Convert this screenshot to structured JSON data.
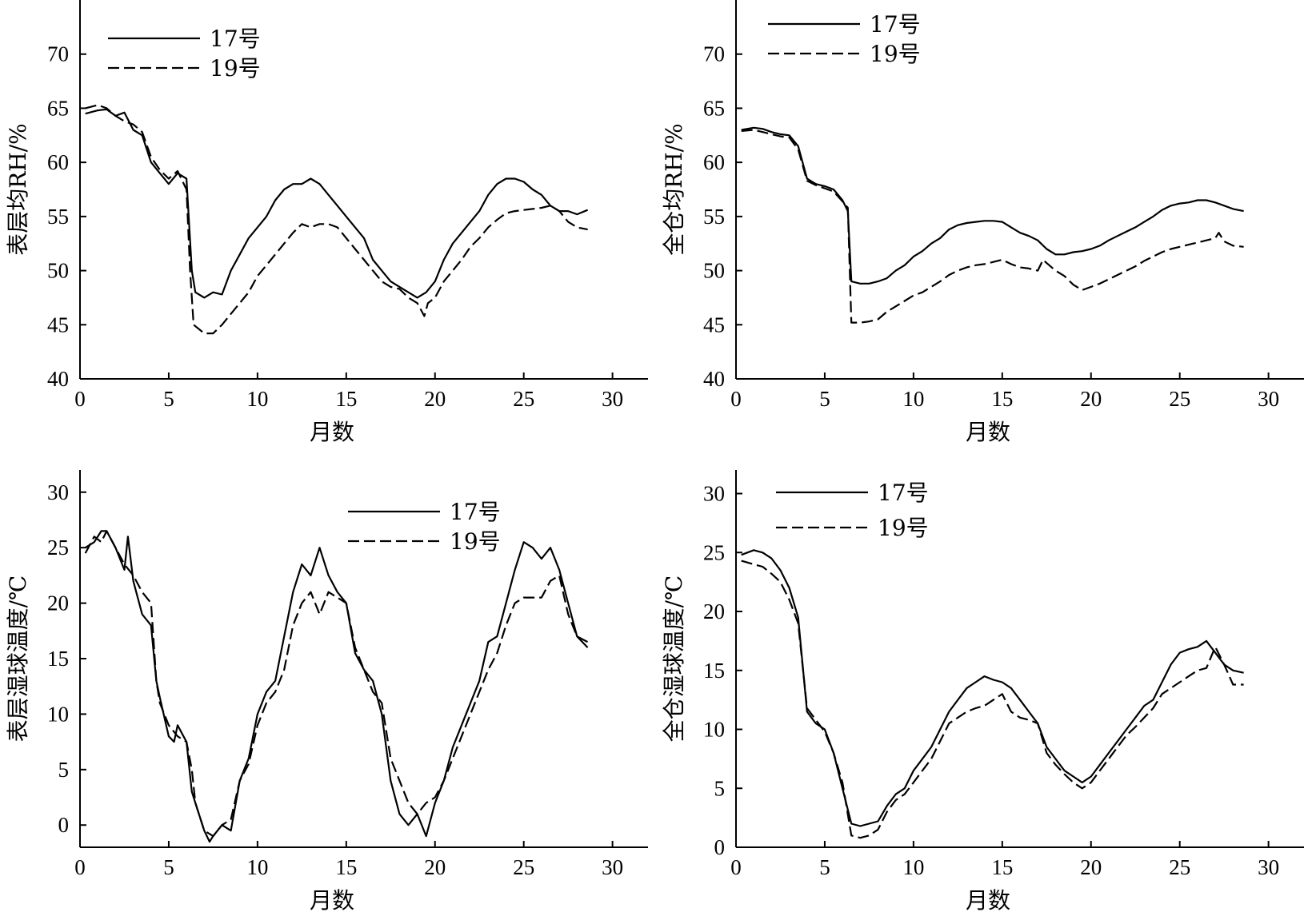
{
  "chart_data": [
    {
      "type": "line",
      "ylabel": "表层均RH/%",
      "xlabel": "月数",
      "xlim": [
        0,
        32
      ],
      "ylim": [
        40,
        75
      ],
      "xticks": [
        0,
        5,
        10,
        15,
        20,
        25,
        30
      ],
      "yticks": [
        40,
        45,
        50,
        55,
        60,
        65,
        70
      ],
      "legend": "top-left",
      "series": [
        {
          "name": "17号",
          "style": "solid",
          "x": [
            0.3,
            1,
            1.5,
            2,
            2.5,
            3,
            3.5,
            4,
            4.5,
            5,
            5.5,
            6,
            6.3,
            6.5,
            7,
            7.5,
            8,
            8.5,
            9,
            9.5,
            10,
            10.5,
            11,
            11.5,
            12,
            12.5,
            13,
            13.5,
            14,
            14.5,
            15,
            15.5,
            16,
            16.5,
            17,
            17.5,
            18,
            18.5,
            19,
            19.5,
            20,
            20.5,
            21,
            21.5,
            22,
            22.5,
            23,
            23.5,
            24,
            24.5,
            25,
            25.5,
            26,
            26.5,
            27,
            27.5,
            28,
            28.6
          ],
          "y": [
            64.5,
            64.8,
            64.9,
            64.3,
            64.6,
            63,
            62.5,
            60,
            59,
            58,
            59,
            58.5,
            50,
            48,
            47.5,
            48,
            47.8,
            50,
            51.5,
            53,
            54,
            55,
            56.5,
            57.5,
            58,
            58,
            58.5,
            58,
            57,
            56,
            55,
            54,
            53,
            51,
            50,
            49,
            48.5,
            48,
            47.5,
            48,
            49,
            51,
            52.5,
            53.5,
            54.5,
            55.5,
            57,
            58,
            58.5,
            58.5,
            58.2,
            57.5,
            57,
            56,
            55.5,
            55.5,
            55.2,
            55.6
          ]
        },
        {
          "name": "19号",
          "style": "dashed",
          "x": [
            0.3,
            1,
            1.5,
            2,
            2.5,
            3,
            3.5,
            4,
            4.5,
            5,
            5.5,
            6,
            6.2,
            6.4,
            7,
            7.5,
            8,
            8.5,
            9,
            9.5,
            10,
            10.5,
            11,
            11.5,
            12,
            12.5,
            13,
            13.5,
            14,
            14.5,
            15,
            15.5,
            16,
            16.5,
            17,
            17.5,
            18,
            18.5,
            19,
            19.4,
            19.6,
            20,
            20.5,
            21,
            21.5,
            22,
            22.5,
            23,
            23.5,
            24,
            24.5,
            25,
            25.5,
            26,
            26.5,
            27,
            27.5,
            28,
            28.6
          ],
          "y": [
            65,
            65.3,
            65,
            64.3,
            63.8,
            63.5,
            62.8,
            60.5,
            59.3,
            58.5,
            59.2,
            57.5,
            50,
            45,
            44.2,
            44.2,
            45,
            46,
            47,
            48,
            49.5,
            50.5,
            51.5,
            52.5,
            53.5,
            54.3,
            54,
            54.3,
            54.3,
            54,
            53,
            52,
            51,
            50,
            49,
            48.5,
            48.3,
            47.5,
            47,
            45.8,
            47,
            47.5,
            49,
            50,
            51,
            52.2,
            53,
            54,
            54.7,
            55.3,
            55.5,
            55.6,
            55.7,
            55.8,
            56,
            55.5,
            54.5,
            54,
            53.8
          ]
        }
      ]
    },
    {
      "type": "line",
      "ylabel": "全仓均RH/%",
      "xlabel": "月数",
      "xlim": [
        0,
        32
      ],
      "ylim": [
        40,
        75
      ],
      "xticks": [
        0,
        5,
        10,
        15,
        20,
        25,
        30
      ],
      "yticks": [
        40,
        45,
        50,
        55,
        60,
        65,
        70
      ],
      "legend": "top-left",
      "series": [
        {
          "name": "17号",
          "style": "solid",
          "x": [
            0.3,
            1,
            1.5,
            2,
            2.5,
            3,
            3.5,
            4,
            4.5,
            5,
            5.5,
            6,
            6.3,
            6.5,
            7,
            7.5,
            8,
            8.5,
            9,
            9.5,
            10,
            10.5,
            11,
            11.5,
            12,
            12.5,
            13,
            13.5,
            14,
            14.5,
            15,
            15.5,
            16,
            16.5,
            17,
            17.5,
            18,
            18.5,
            19,
            19.5,
            20,
            20.5,
            21,
            21.5,
            22,
            22.5,
            23,
            23.5,
            24,
            24.5,
            25,
            25.5,
            26,
            26.5,
            27,
            27.5,
            28,
            28.6
          ],
          "y": [
            63,
            63.2,
            63.1,
            62.8,
            62.6,
            62.5,
            61.5,
            58.5,
            58,
            57.8,
            57.5,
            56.5,
            55.5,
            49,
            48.8,
            48.8,
            49,
            49.3,
            50,
            50.5,
            51.3,
            51.8,
            52.5,
            53,
            53.8,
            54.2,
            54.4,
            54.5,
            54.6,
            54.6,
            54.5,
            54,
            53.5,
            53.2,
            52.8,
            52,
            51.5,
            51.5,
            51.7,
            51.8,
            52,
            52.3,
            52.8,
            53.2,
            53.6,
            54,
            54.5,
            55,
            55.6,
            56,
            56.2,
            56.3,
            56.5,
            56.5,
            56.3,
            56,
            55.7,
            55.5
          ]
        },
        {
          "name": "19号",
          "style": "dashed",
          "x": [
            0.3,
            1,
            1.5,
            2,
            2.5,
            3,
            3.5,
            4,
            4.5,
            5,
            5.5,
            6,
            6.3,
            6.5,
            7,
            7.5,
            8,
            8.5,
            9,
            9.5,
            10,
            10.5,
            11,
            11.5,
            12,
            12.5,
            13,
            13.5,
            14,
            14.5,
            15,
            15.5,
            16,
            16.5,
            17,
            17.3,
            17.5,
            18,
            18.5,
            19,
            19.5,
            20,
            20.5,
            21,
            21.5,
            22,
            22.5,
            23,
            23.5,
            24,
            24.5,
            25,
            25.5,
            26,
            26.5,
            27,
            27.2,
            27.5,
            28,
            28.6
          ],
          "y": [
            62.9,
            63,
            62.8,
            62.6,
            62.4,
            62.3,
            61.2,
            58.3,
            57.9,
            57.6,
            57.3,
            56.4,
            55.8,
            45.2,
            45.2,
            45.3,
            45.5,
            46.2,
            46.7,
            47.2,
            47.7,
            48,
            48.5,
            49,
            49.6,
            50,
            50.3,
            50.5,
            50.6,
            50.8,
            51,
            50.6,
            50.3,
            50.2,
            50,
            51,
            50.7,
            50,
            49.5,
            48.7,
            48.2,
            48.5,
            48.8,
            49.2,
            49.6,
            50,
            50.4,
            50.9,
            51.3,
            51.7,
            52,
            52.2,
            52.4,
            52.6,
            52.8,
            53,
            53.5,
            52.7,
            52.3,
            52.2
          ]
        }
      ]
    },
    {
      "type": "line",
      "ylabel": "表层湿球温度/℃",
      "xlabel": "月数",
      "xlim": [
        0,
        32
      ],
      "ylim": [
        -2,
        32
      ],
      "xticks": [
        0,
        5,
        10,
        15,
        20,
        25,
        30
      ],
      "yticks": [
        0,
        5,
        10,
        15,
        20,
        25,
        30
      ],
      "legend": "top-center",
      "series": [
        {
          "name": "17号",
          "style": "solid",
          "x": [
            0.3,
            0.8,
            1.2,
            1.5,
            2,
            2.5,
            2.7,
            3,
            3.5,
            4,
            4.3,
            4.5,
            5,
            5.3,
            5.5,
            6,
            6.3,
            6.5,
            7,
            7.3,
            7.5,
            8,
            8.5,
            9,
            9.5,
            10,
            10.5,
            11,
            11.5,
            12,
            12.5,
            13,
            13.5,
            14,
            14.5,
            15,
            15.5,
            16,
            16.5,
            17,
            17.5,
            18,
            18.5,
            19,
            19.5,
            20,
            20.5,
            21,
            21.5,
            22,
            22.5,
            23,
            23.5,
            24,
            24.5,
            25,
            25.5,
            26,
            26.5,
            27,
            27.5,
            28,
            28.6
          ],
          "y": [
            25,
            25.5,
            26.5,
            26.5,
            25,
            23,
            26,
            22,
            19,
            18,
            13,
            11.5,
            8,
            7.5,
            9,
            7.5,
            3,
            2,
            -0.5,
            -1.5,
            -1,
            0,
            -0.5,
            4,
            6,
            10,
            12,
            13,
            17,
            21,
            23.5,
            22.5,
            25,
            22.5,
            21,
            20,
            15.5,
            14,
            13,
            10,
            4,
            1,
            0,
            1,
            -1,
            2,
            4,
            7,
            9,
            11,
            13,
            16.5,
            17,
            20,
            23,
            25.5,
            25,
            24,
            25,
            23,
            20,
            17,
            16
          ]
        },
        {
          "name": "19号",
          "style": "dashed",
          "x": [
            0.3,
            0.8,
            1.2,
            1.5,
            2,
            2.5,
            3,
            3.5,
            4,
            4.3,
            4.5,
            5,
            5.5,
            6,
            6.3,
            6.5,
            7,
            7.5,
            8,
            8.5,
            9,
            9.5,
            10,
            10.5,
            11,
            11.5,
            12,
            12.5,
            13,
            13.5,
            14,
            14.5,
            15,
            15.5,
            16,
            16.5,
            17,
            17.5,
            18,
            18.5,
            19,
            19.5,
            20,
            20.5,
            21,
            21.5,
            22,
            22.5,
            23,
            23.5,
            24,
            24.5,
            25,
            25.5,
            26,
            26.5,
            27,
            27.5,
            28,
            28.6
          ],
          "y": [
            24.5,
            26,
            25.5,
            26.5,
            25,
            23.5,
            22.5,
            21,
            20,
            13,
            11,
            9,
            8,
            7.5,
            5,
            2,
            -0.5,
            -1,
            0,
            0.5,
            4,
            5.5,
            9,
            11,
            12,
            14,
            18,
            20,
            21,
            19,
            21,
            20.5,
            20,
            16,
            14,
            12,
            11,
            6,
            4,
            2,
            1,
            2,
            2.5,
            4,
            6,
            8,
            10,
            12,
            14,
            15.5,
            18,
            20,
            20.5,
            20.5,
            20.5,
            22,
            22.5,
            19,
            17,
            16.5
          ]
        }
      ]
    },
    {
      "type": "line",
      "ylabel": "全仓湿球温度/℃",
      "xlabel": "月数",
      "xlim": [
        0,
        32
      ],
      "ylim": [
        0,
        32
      ],
      "xticks": [
        0,
        5,
        10,
        15,
        20,
        25,
        30
      ],
      "yticks": [
        0,
        5,
        10,
        15,
        20,
        25,
        30
      ],
      "legend": "top-left",
      "series": [
        {
          "name": "17号",
          "style": "solid",
          "x": [
            0.3,
            1,
            1.5,
            2,
            2.5,
            3,
            3.5,
            4,
            4.5,
            5,
            5.5,
            6,
            6.5,
            7,
            7.5,
            8,
            8.5,
            9,
            9.5,
            10,
            10.5,
            11,
            11.5,
            12,
            12.5,
            13,
            13.5,
            14,
            14.5,
            15,
            15.5,
            16,
            16.5,
            17,
            17.5,
            18,
            18.5,
            19,
            19.5,
            20,
            20.5,
            21,
            21.5,
            22,
            22.5,
            23,
            23.5,
            24,
            24.5,
            25,
            25.5,
            26,
            26.5,
            27,
            27.5,
            28,
            28.6
          ],
          "y": [
            24.8,
            25.2,
            25,
            24.5,
            23.5,
            22,
            19.5,
            11.5,
            10.5,
            10,
            8,
            5,
            2,
            1.8,
            2,
            2.2,
            3.5,
            4.5,
            5,
            6.5,
            7.5,
            8.5,
            10,
            11.5,
            12.5,
            13.5,
            14,
            14.5,
            14.2,
            14,
            13.5,
            12.5,
            11.5,
            10.5,
            8.5,
            7.5,
            6.5,
            6,
            5.5,
            6,
            7,
            8,
            9,
            10,
            11,
            12,
            12.5,
            14,
            15.5,
            16.5,
            16.8,
            17,
            17.5,
            16.5,
            15.5,
            15,
            14.8
          ]
        },
        {
          "name": "19号",
          "style": "dashed",
          "x": [
            0.3,
            1,
            1.5,
            2,
            2.5,
            3,
            3.5,
            4,
            4.5,
            5,
            5.5,
            6,
            6.5,
            7,
            7.5,
            8,
            8.5,
            9,
            9.5,
            10,
            10.5,
            11,
            11.5,
            12,
            12.5,
            13,
            13.5,
            14,
            14.5,
            15,
            15.5,
            16,
            16.5,
            17,
            17.5,
            18,
            18.5,
            19,
            19.5,
            20,
            20.5,
            21,
            21.5,
            22,
            22.5,
            23,
            23.5,
            24,
            24.5,
            25,
            25.5,
            26,
            26.5,
            27,
            27.5,
            28,
            28.6
          ],
          "y": [
            24.3,
            24,
            23.8,
            23.2,
            22.5,
            21,
            19,
            11.8,
            10.8,
            9.8,
            8,
            5.5,
            1,
            0.8,
            1,
            1.5,
            3,
            4,
            4.5,
            5.5,
            6.5,
            7.5,
            9,
            10.5,
            11,
            11.5,
            11.8,
            12,
            12.5,
            13,
            11.5,
            11,
            10.8,
            10.5,
            8,
            7,
            6.2,
            5.5,
            5,
            5.5,
            6.5,
            7.5,
            8.5,
            9.5,
            10.2,
            11,
            11.8,
            13,
            13.5,
            14,
            14.5,
            15,
            15.2,
            17,
            15.5,
            13.8,
            13.8
          ]
        }
      ]
    }
  ]
}
